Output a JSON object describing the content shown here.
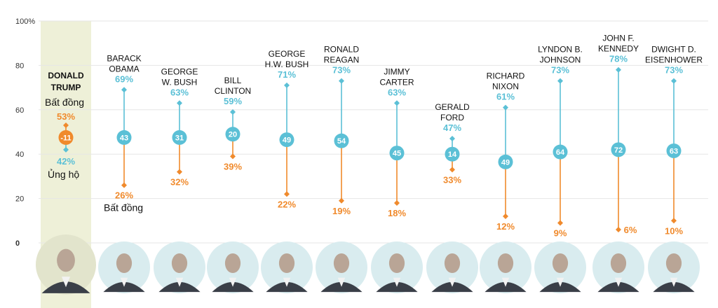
{
  "chart_data": {
    "type": "dot-range",
    "title": "",
    "ylim": [
      0,
      100
    ],
    "yticks": [
      "100%",
      "80",
      "60",
      "40",
      "20",
      "0"
    ],
    "grid": true,
    "colors": {
      "approve": "#5bc0d6",
      "disapprove": "#f08a2c",
      "highlight": "#eef0d8",
      "grid": "#e6e6e6",
      "portrait": "#d9ecef"
    },
    "labels": {
      "approve": "Ủng hộ",
      "disapprove": "Bất đồng"
    },
    "presidents": [
      {
        "name_lines": [
          "DONALD",
          "TRUMP"
        ],
        "approve": 42,
        "disapprove": 53,
        "net": "-11",
        "highlight": true
      },
      {
        "name_lines": [
          "BARACK",
          "OBAMA"
        ],
        "approve": 69,
        "disapprove": 26,
        "net": "43"
      },
      {
        "name_lines": [
          "GEORGE",
          "W. BUSH"
        ],
        "approve": 63,
        "disapprove": 32,
        "net": "31"
      },
      {
        "name_lines": [
          "BILL",
          "CLINTON"
        ],
        "approve": 59,
        "disapprove": 39,
        "net": "20"
      },
      {
        "name_lines": [
          "GEORGE",
          "H.W. BUSH"
        ],
        "approve": 71,
        "disapprove": 22,
        "net": "49"
      },
      {
        "name_lines": [
          "RONALD",
          "REAGAN"
        ],
        "approve": 73,
        "disapprove": 19,
        "net": "54"
      },
      {
        "name_lines": [
          "JIMMY",
          "CARTER"
        ],
        "approve": 63,
        "disapprove": 18,
        "net": "45"
      },
      {
        "name_lines": [
          "GERALD",
          "FORD"
        ],
        "approve": 47,
        "disapprove": 33,
        "net": "14"
      },
      {
        "name_lines": [
          "RICHARD",
          "NIXON"
        ],
        "approve": 61,
        "disapprove": 12,
        "net": "49"
      },
      {
        "name_lines": [
          "LYNDON B.",
          "JOHNSON"
        ],
        "approve": 73,
        "disapprove": 9,
        "net": "64"
      },
      {
        "name_lines": [
          "JOHN F.",
          "KENNEDY"
        ],
        "approve": 78,
        "disapprove": 6,
        "net": "72"
      },
      {
        "name_lines": [
          "DWIGHT D.",
          "EISENHOWER"
        ],
        "approve": 73,
        "disapprove": 10,
        "net": "63"
      }
    ]
  }
}
